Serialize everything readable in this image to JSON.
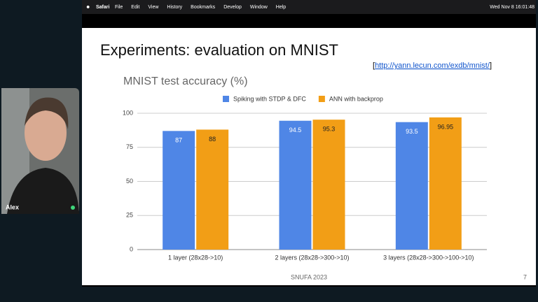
{
  "menubar": {
    "app": "Safari",
    "items": [
      "File",
      "Edit",
      "View",
      "History",
      "Bookmarks",
      "Develop",
      "Window",
      "Help"
    ],
    "clock": "Wed Nov 8  16:01:48"
  },
  "participant": {
    "name": "Alex"
  },
  "slide": {
    "title": "Experiments: evaluation on MNIST",
    "link": {
      "open": "[",
      "url": "http://yann.lecun.com/exdb/mnist/",
      "close": "]"
    },
    "footer": "SNUFA 2023",
    "page": "7"
  },
  "chart_data": {
    "type": "bar",
    "title": "MNIST test accuracy (%)",
    "categories": [
      "1 layer (28x28->10)",
      "2 layers (28x28->300->10)",
      "3 layers (28x28->300->100->10)"
    ],
    "series": [
      {
        "name": "Spiking with STDP & DFC",
        "color": "#4f86e6",
        "values": [
          87,
          94.5,
          93.5
        ]
      },
      {
        "name": "ANN with backprop",
        "color": "#f29e16",
        "values": [
          88,
          95.3,
          96.95
        ]
      }
    ],
    "ylim": [
      0,
      100
    ],
    "yticks": [
      0,
      25,
      50,
      75,
      100
    ],
    "grid": true,
    "legend": "top"
  }
}
